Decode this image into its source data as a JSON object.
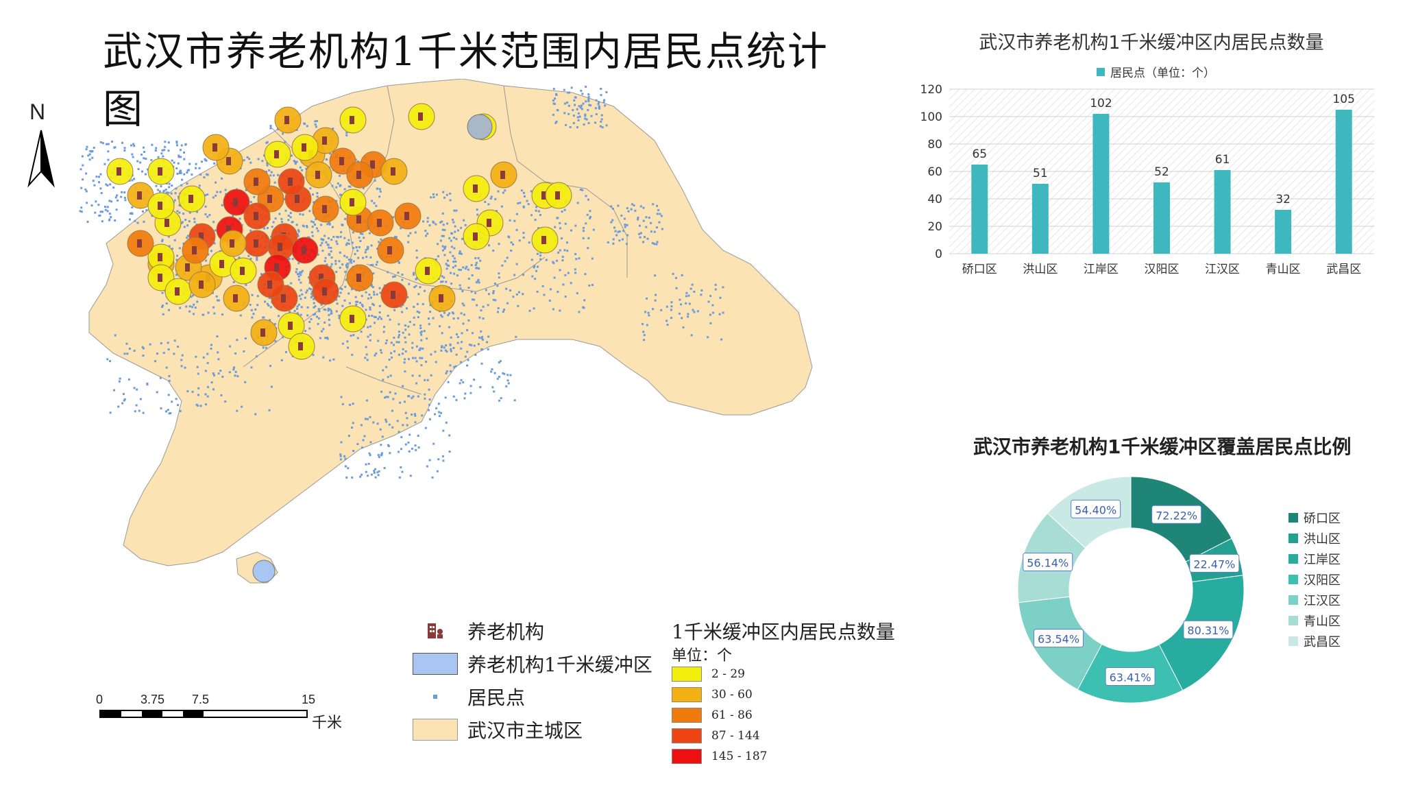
{
  "map": {
    "title": "武汉市养老机构1千米范围内居民点统计图",
    "north": "N",
    "scale": {
      "ticks": [
        "0",
        "3.75",
        "7.5",
        "15"
      ],
      "unit": "千米"
    },
    "legend": {
      "facility": "养老机构",
      "buffer": "养老机构1千米缓冲区",
      "resident": "居民点",
      "district": "武汉市主城区"
    },
    "classes": {
      "title": "1千米缓冲区内居民点数量",
      "unit": "单位：个",
      "items": [
        {
          "label": "2  -  29",
          "color": "#f4ee0c"
        },
        {
          "label": "30  -  60",
          "color": "#f3b012"
        },
        {
          "label": "61  -  86",
          "color": "#f07b0d"
        },
        {
          "label": "87  -  144",
          "color": "#ec4412"
        },
        {
          "label": "145  -  187",
          "color": "#ee1010"
        }
      ]
    },
    "colors": {
      "district": "#fbe3b4",
      "resident": "#6a9bde",
      "buffer": "#a9c6f3",
      "facility": "#8b3a3a"
    }
  },
  "chart_data": [
    {
      "type": "bar",
      "title": "武汉市养老机构1千米缓冲区内居民点数量",
      "legend": "居民点（单位：个）",
      "categories": [
        "硚口区",
        "洪山区",
        "江岸区",
        "汉阳区",
        "江汉区",
        "青山区",
        "武昌区"
      ],
      "series": [
        {
          "name": "居民点（单位：个）",
          "values": [
            65,
            51,
            102,
            52,
            61,
            32,
            105
          ]
        }
      ],
      "yticks": [
        "0",
        "20",
        "40",
        "60",
        "80",
        "100",
        "120"
      ],
      "ylim": [
        0,
        120
      ],
      "color": "#3eb7bf",
      "grid": true
    },
    {
      "type": "pie",
      "title": "武汉市养老机构1千米缓冲区覆盖居民点比例",
      "categories": [
        "硚口区",
        "洪山区",
        "江岸区",
        "汉阳区",
        "江汉区",
        "青山区",
        "武昌区"
      ],
      "labels": [
        "72.22%",
        "22.47%",
        "80.31%",
        "63.41%",
        "63.54%",
        "56.14%",
        "54.40%"
      ],
      "values": [
        72.22,
        22.47,
        80.31,
        63.41,
        63.54,
        56.14,
        54.4
      ],
      "colors": [
        "#1f8577",
        "#23a090",
        "#26ada0",
        "#3dbfb2",
        "#7dd0c6",
        "#a8ddd6",
        "#c9e9e4"
      ],
      "legend_position": "right"
    }
  ]
}
